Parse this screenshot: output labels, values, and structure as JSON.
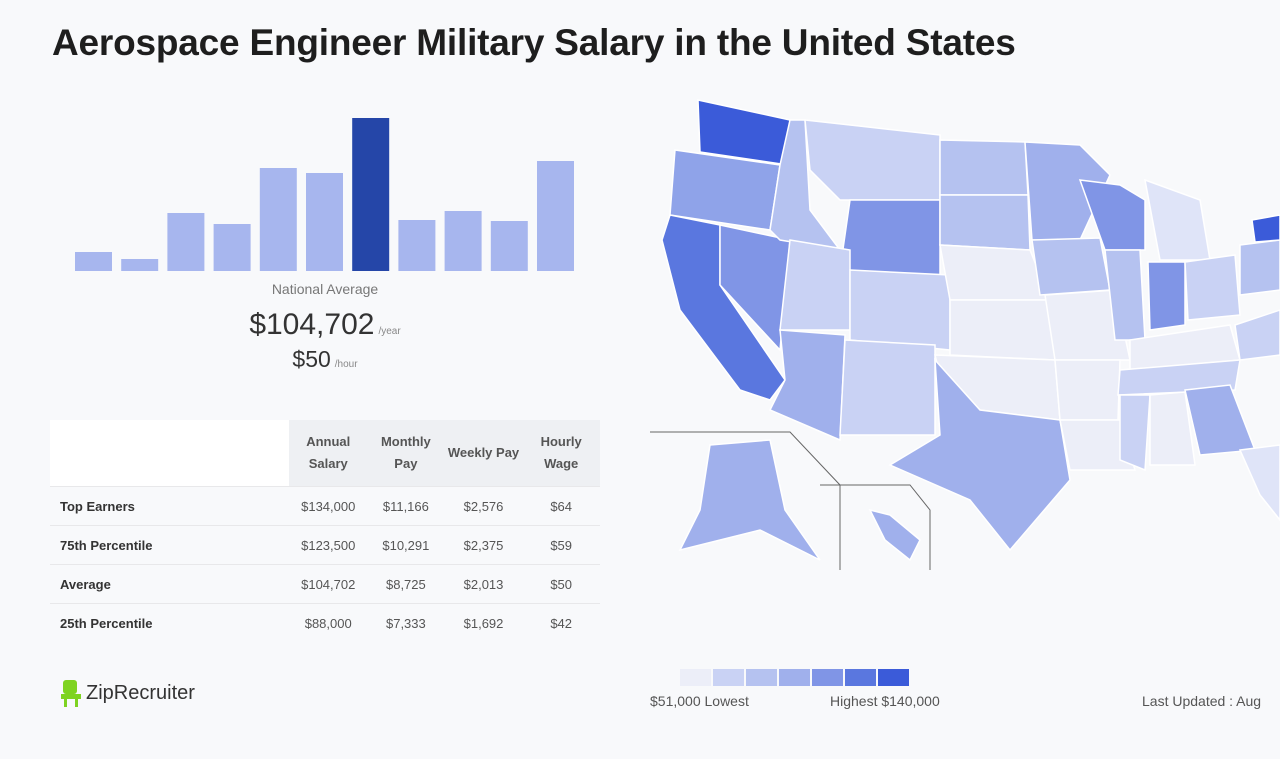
{
  "title": "Aerospace Engineer Military Salary in the United States",
  "chart_data": [
    {
      "type": "bar",
      "title": "",
      "values": [
        19,
        12,
        58,
        47,
        103,
        98,
        153,
        51,
        60,
        50,
        110
      ],
      "highlight_index": 6,
      "colors": {
        "bar": "#a7b6ee",
        "highlight": "#2546a8"
      }
    },
    {
      "type": "heatmap",
      "description_kind": "choropleth",
      "legend": {
        "low_label": "$51,000 Lowest",
        "high_label": "Highest $140,000",
        "colors": [
          "#eceef8",
          "#c9d2f4",
          "#b5c2f0",
          "#a0b0ec",
          "#8095e6",
          "#5a77df",
          "#3b5bd9"
        ]
      }
    }
  ],
  "national_average": {
    "label": "National Average",
    "annual": "$104,702",
    "annual_unit": "/year",
    "hourly": "$50",
    "hourly_unit": "/hour"
  },
  "table": {
    "headers": [
      "Annual Salary",
      "Monthly Pay",
      "Weekly Pay",
      "Hourly Wage"
    ],
    "rows": [
      {
        "label": "Top Earners",
        "values": [
          "$134,000",
          "$11,166",
          "$2,576",
          "$64"
        ]
      },
      {
        "label": "75th Percentile",
        "values": [
          "$123,500",
          "$10,291",
          "$2,375",
          "$59"
        ]
      },
      {
        "label": "Average",
        "values": [
          "$104,702",
          "$8,725",
          "$2,013",
          "$50"
        ]
      },
      {
        "label": "25th Percentile",
        "values": [
          "$88,000",
          "$7,333",
          "$1,692",
          "$42"
        ]
      }
    ]
  },
  "footer": {
    "logo": "ZipRecruiter",
    "last_updated": "Last Updated : Aug"
  }
}
